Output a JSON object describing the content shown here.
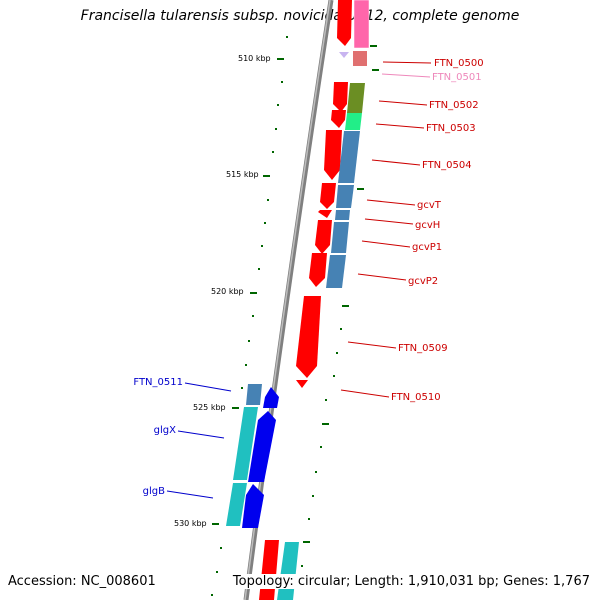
{
  "title": "Francisella tularensis subsp. novicida U112, complete genome",
  "accession": "Accession: NC_008601",
  "topology": "Topology: circular; Length: 1,910,031 bp; Genes: 1,767",
  "scale_ticks": [
    {
      "label": "510 kbp",
      "kbp": 510
    },
    {
      "label": "515 kbp",
      "kbp": 515
    },
    {
      "label": "520 kbp",
      "kbp": 520
    },
    {
      "label": "525 kbp",
      "kbp": 525
    },
    {
      "label": "530 kbp",
      "kbp": 530
    }
  ],
  "forward_gene_labels": [
    "FTN_0500",
    "FTN_0501",
    "FTN_0502",
    "FTN_0503",
    "FTN_0504",
    "gcvT",
    "gcvH",
    "gcvP1",
    "gcvP2",
    "FTN_0509",
    "FTN_0510"
  ],
  "reverse_gene_labels": [
    "FTN_0511",
    "glgX",
    "glgB"
  ],
  "colors": {
    "forward_label": "#cc0000",
    "forward_label_faint": "#ee88bb",
    "reverse_label": "#0000cc",
    "backbone": "#808080",
    "tick": "#006600",
    "gene_red": "#ff0000",
    "gene_blue": "#0000ee",
    "cog_steelblue": "#4682b4",
    "cog_cyan": "#20c0c0",
    "cog_olive": "#6b8e23",
    "cog_green": "#22ee88",
    "cog_pink": "#ff66aa"
  }
}
